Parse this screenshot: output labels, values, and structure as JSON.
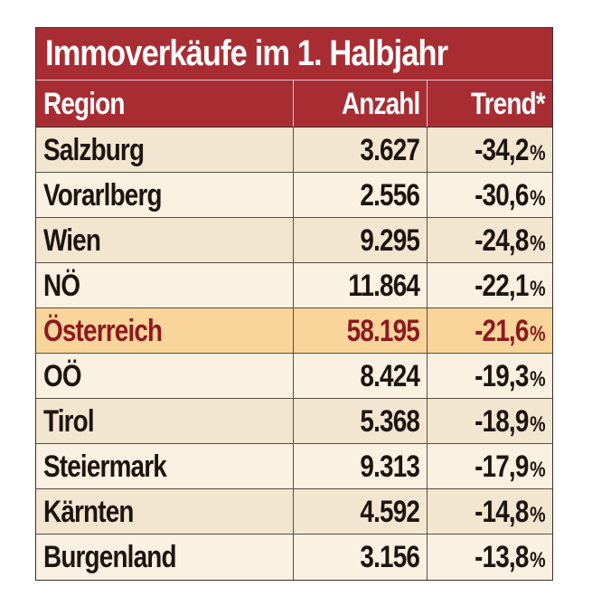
{
  "title": "Immoverkäufe im 1. Halbjahr",
  "headers": {
    "region": "Region",
    "count": "Anzahl",
    "trend": "Trend*"
  },
  "colors": {
    "header_bg": "#a82d33",
    "highlight_bg": "#f9d49b",
    "highlight_text": "#8c1a1f",
    "row_dark": "#f3e6d1",
    "row_light": "#faf1e3"
  },
  "rows": [
    {
      "region": "Salzburg",
      "count": "3.627",
      "trend": "-34,2",
      "unit": "%"
    },
    {
      "region": "Vorarlberg",
      "count": "2.556",
      "trend": "-30,6",
      "unit": "%"
    },
    {
      "region": "Wien",
      "count": "9.295",
      "trend": "-24,8",
      "unit": "%"
    },
    {
      "region": "NÖ",
      "count": "11.864",
      "trend": "-22,1",
      "unit": "%"
    },
    {
      "region": "Österreich",
      "count": "58.195",
      "trend": "-21,6",
      "unit": "%",
      "highlight": true
    },
    {
      "region": "OÖ",
      "count": "8.424",
      "trend": "-19,3",
      "unit": "%"
    },
    {
      "region": "Tirol",
      "count": "5.368",
      "trend": "-18,9",
      "unit": "%"
    },
    {
      "region": "Steiermark",
      "count": "9.313",
      "trend": "-17,9",
      "unit": "%"
    },
    {
      "region": "Kärnten",
      "count": "4.592",
      "trend": "-14,8",
      "unit": "%"
    },
    {
      "region": "Burgenland",
      "count": "3.156",
      "trend": "-13,8",
      "unit": "%"
    }
  ],
  "chart_data": {
    "type": "table",
    "title": "Immoverkäufe im 1. Halbjahr",
    "columns": [
      "Region",
      "Anzahl",
      "Trend*"
    ],
    "rows": [
      [
        "Salzburg",
        3627,
        -34.2
      ],
      [
        "Vorarlberg",
        2556,
        -30.6
      ],
      [
        "Wien",
        9295,
        -24.8
      ],
      [
        "NÖ",
        11864,
        -22.1
      ],
      [
        "Österreich",
        58195,
        -21.6
      ],
      [
        "OÖ",
        8424,
        -19.3
      ],
      [
        "Tirol",
        5368,
        -18.9
      ],
      [
        "Steiermark",
        9313,
        -17.9
      ],
      [
        "Kärnten",
        4592,
        -14.8
      ],
      [
        "Burgenland",
        3156,
        -13.8
      ]
    ]
  }
}
